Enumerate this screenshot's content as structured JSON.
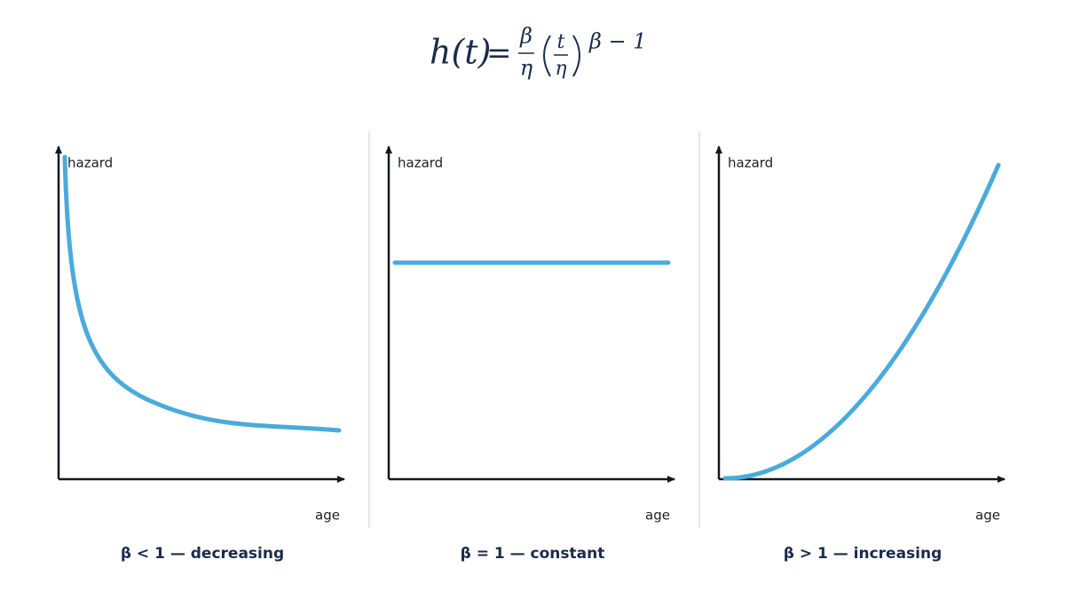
{
  "formula": {
    "lhs": "h(t)",
    "equals": "=",
    "fraction_numerator": "β",
    "fraction_denominator": "η",
    "inner_numerator": "t",
    "inner_denominator": "η",
    "exponent": "β − 1"
  },
  "panels": [
    {
      "y_label": "hazard",
      "x_label": "age",
      "caption": "β < 1 — decreasing"
    },
    {
      "y_label": "hazard",
      "x_label": "age",
      "caption": "β = 1 — constant"
    },
    {
      "y_label": "hazard",
      "x_label": "age",
      "caption": "β > 1 — increasing"
    }
  ]
}
